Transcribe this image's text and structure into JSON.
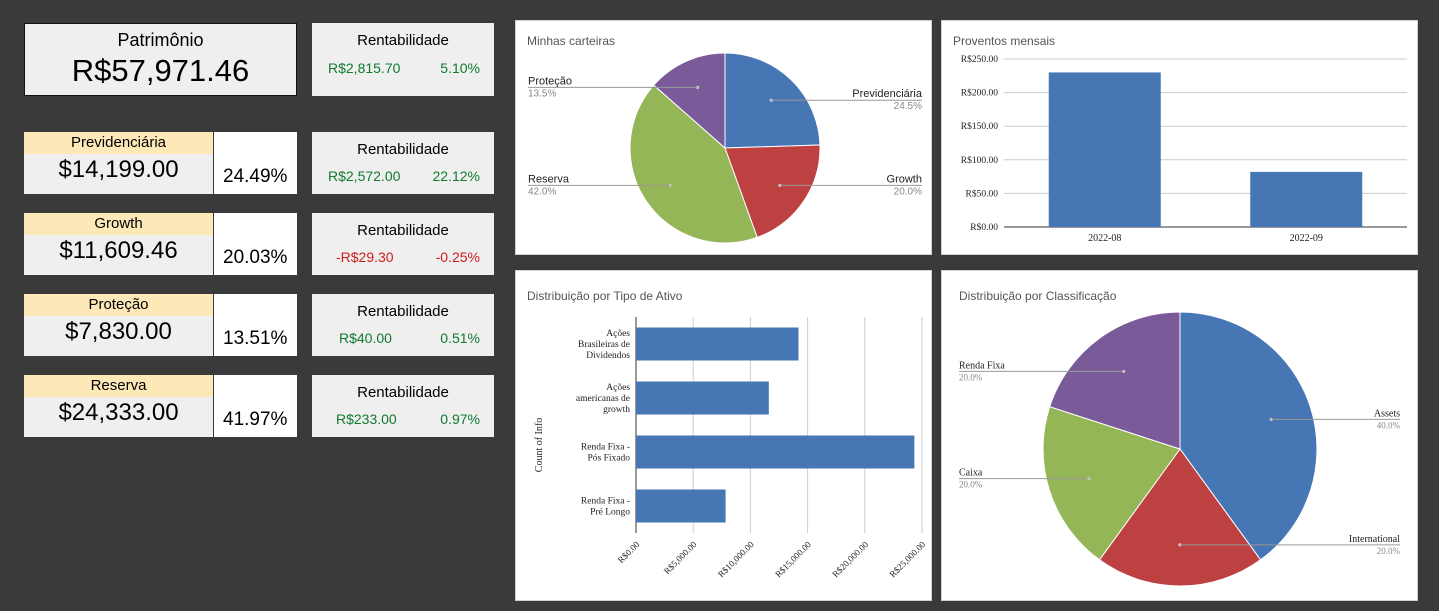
{
  "summary": {
    "patrimonio_label": "Patrimônio",
    "patrimonio_value": "R$57,971.46",
    "rent_label": "Rentabilidade",
    "rent_amount": "R$2,815.70",
    "rent_pct": "5.10%"
  },
  "categories": [
    {
      "name": "Previdenciária",
      "value": "$14,199.00",
      "share": "24.49%",
      "rent_label": "Rentabilidade",
      "rent_amount": "R$2,572.00",
      "rent_pct": "22.12%",
      "positive": true
    },
    {
      "name": "Growth",
      "value": "$11,609.46",
      "share": "20.03%",
      "rent_label": "Rentabilidade",
      "rent_amount": "-R$29.30",
      "rent_pct": "-0.25%",
      "positive": false
    },
    {
      "name": "Proteção",
      "value": "$7,830.00",
      "share": "13.51%",
      "rent_label": "Rentabilidade",
      "rent_amount": "R$40.00",
      "rent_pct": "0.51%",
      "positive": true
    },
    {
      "name": "Reserva",
      "value": "$24,333.00",
      "share": "41.97%",
      "rent_label": "Rentabilidade",
      "rent_amount": "R$233.00",
      "rent_pct": "0.97%",
      "positive": true
    }
  ],
  "colors": {
    "blue": "#4776b4",
    "red": "#bc4140",
    "green": "#94b656",
    "purple": "#7a5a99",
    "positive": "#107a2e",
    "negative": "#cc1d1d",
    "header": "#fde9b8"
  },
  "chart_data": [
    {
      "type": "pie",
      "title": "Minhas carteiras",
      "slices": [
        {
          "label": "Previdenciária",
          "value": 24.5,
          "pct_label": "24.5%",
          "color": "#4776b4"
        },
        {
          "label": "Growth",
          "value": 20.0,
          "pct_label": "20.0%",
          "color": "#bc4140"
        },
        {
          "label": "Reserva",
          "value": 42.0,
          "pct_label": "42.0%",
          "color": "#94b656"
        },
        {
          "label": "Proteção",
          "value": 13.5,
          "pct_label": "13.5%",
          "color": "#7a5a99"
        }
      ]
    },
    {
      "type": "bar",
      "title": "Proventos mensais",
      "categories": [
        "2022-08",
        "2022-09"
      ],
      "values": [
        230,
        82
      ],
      "ylim": [
        0,
        250
      ],
      "yticks": [
        "R$0.00",
        "R$50.00",
        "R$100.00",
        "R$150.00",
        "R$200.00",
        "R$250.00"
      ],
      "grid": true,
      "color": "#4776b4"
    },
    {
      "type": "bar",
      "orientation": "horizontal",
      "title": "Distribuição por Tipo de Ativo",
      "ylabel": "Count of Info",
      "categories": [
        [
          "Ações",
          "Brasileiras de",
          "Dividendos"
        ],
        [
          "Ações",
          "americanas de",
          "growth"
        ],
        [
          "Renda Fixa -",
          "Pós Fixado"
        ],
        [
          "Renda Fixa -",
          "Pré Longo"
        ]
      ],
      "values": [
        14199,
        11609.46,
        24333,
        7830
      ],
      "xlim": [
        0,
        25000
      ],
      "xticks": [
        "R$0.00",
        "R$5,000.00",
        "R$10,000.00",
        "R$15,000.00",
        "R$20,000.00",
        "R$25,000.00"
      ],
      "grid": true,
      "color": "#4776b4"
    },
    {
      "type": "pie",
      "title": "Distribuição por Classificação",
      "slices": [
        {
          "label": "Assets",
          "value": 40.0,
          "pct_label": "40.0%",
          "color": "#4776b4"
        },
        {
          "label": "International",
          "value": 20.0,
          "pct_label": "20.0%",
          "color": "#bc4140"
        },
        {
          "label": "Caixa",
          "value": 20.0,
          "pct_label": "20.0%",
          "color": "#94b656"
        },
        {
          "label": "Renda Fixa",
          "value": 20.0,
          "pct_label": "20.0%",
          "color": "#7a5a99"
        }
      ]
    }
  ]
}
